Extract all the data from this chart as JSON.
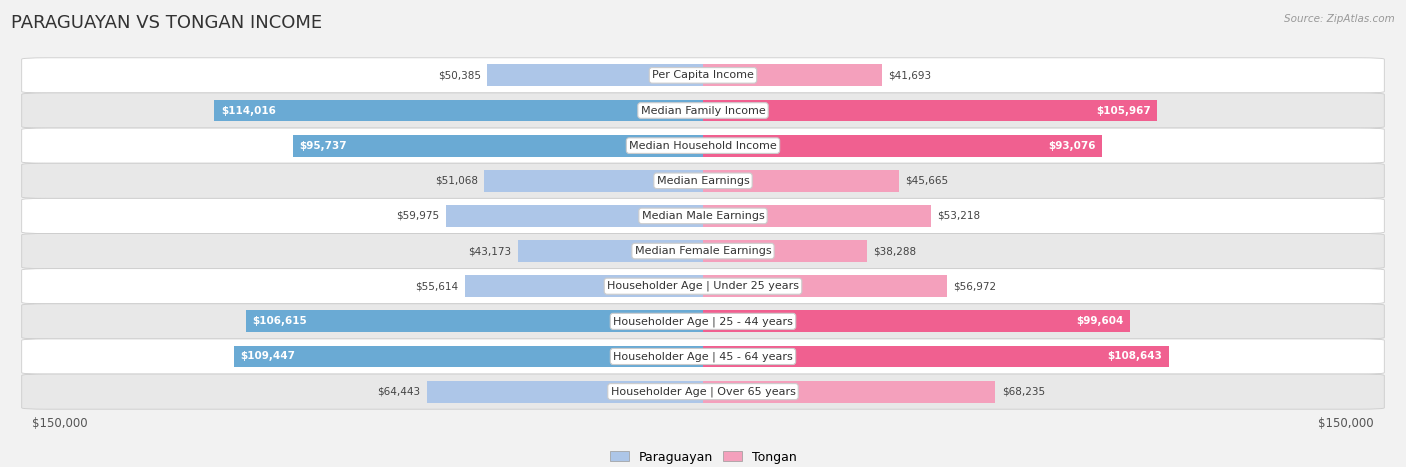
{
  "title": "PARAGUAYAN VS TONGAN INCOME",
  "source": "Source: ZipAtlas.com",
  "categories": [
    "Per Capita Income",
    "Median Family Income",
    "Median Household Income",
    "Median Earnings",
    "Median Male Earnings",
    "Median Female Earnings",
    "Householder Age | Under 25 years",
    "Householder Age | 25 - 44 years",
    "Householder Age | 45 - 64 years",
    "Householder Age | Over 65 years"
  ],
  "paraguayan_values": [
    50385,
    114016,
    95737,
    51068,
    59975,
    43173,
    55614,
    106615,
    109447,
    64443
  ],
  "tongan_values": [
    41693,
    105967,
    93076,
    45665,
    53218,
    38288,
    56972,
    99604,
    108643,
    68235
  ],
  "paraguayan_labels": [
    "$50,385",
    "$114,016",
    "$95,737",
    "$51,068",
    "$59,975",
    "$43,173",
    "$55,614",
    "$106,615",
    "$109,447",
    "$64,443"
  ],
  "tongan_labels": [
    "$41,693",
    "$105,967",
    "$93,076",
    "$45,665",
    "$53,218",
    "$38,288",
    "$56,972",
    "$99,604",
    "$108,643",
    "$68,235"
  ],
  "max_value": 150000,
  "paraguayan_light_color": "#adc6e8",
  "paraguayan_dark_color": "#6aaad4",
  "tongan_light_color": "#f4a0bc",
  "tongan_dark_color": "#f06090",
  "bg_color": "#f2f2f2",
  "row_white_color": "#ffffff",
  "row_gray_color": "#e8e8e8",
  "title_fontsize": 13,
  "label_fontsize": 8,
  "value_fontsize": 7.5,
  "paraguayan_threshold": 90000,
  "tongan_threshold": 90000
}
